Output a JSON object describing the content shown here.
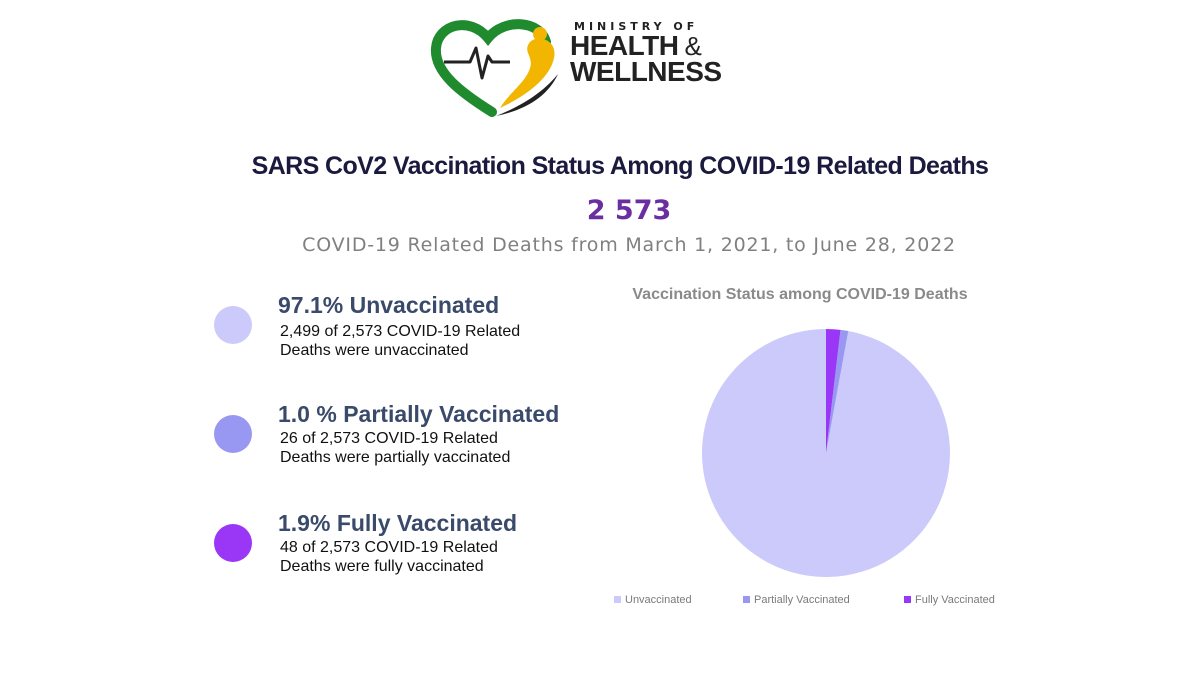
{
  "logo": {
    "line1": "MINISTRY OF",
    "line2": "HEALTH",
    "amp": "&",
    "line3": "WELLNESS",
    "colors": {
      "green": "#1f8a2e",
      "yellow": "#f2b600",
      "black": "#222222"
    }
  },
  "header": {
    "title": "SARS CoV2 Vaccination Status Among COVID-19 Related Deaths",
    "total": "2 573",
    "subtitle": "COVID-19 Related Deaths from March 1, 2021, to June 28, 2022"
  },
  "stats": [
    {
      "title": "97.1% Unvaccinated",
      "line1": "2,499 of 2,573 COVID-19 Related",
      "line2": "Deaths were unvaccinated",
      "color": "#cccafa"
    },
    {
      "title": "1.0 % Partially Vaccinated",
      "line1": "26 of 2,573 COVID-19 Related",
      "line2": "Deaths were partially vaccinated",
      "color": "#9898f2"
    },
    {
      "title": "1.9% Fully Vaccinated",
      "line1": "48 of 2,573 COVID-19 Related",
      "line2": "Deaths were fully vaccinated",
      "color": "#9a36f5"
    }
  ],
  "chart_data": {
    "type": "pie",
    "title": "Vaccination Status among COVID-19 Deaths",
    "categories": [
      "Unvaccinated",
      "Partially Vaccinated",
      "Fully Vaccinated"
    ],
    "values": [
      2499,
      26,
      48
    ],
    "colors": [
      "#cccafa",
      "#9898f2",
      "#9a36f5"
    ],
    "legend": "bottom"
  }
}
